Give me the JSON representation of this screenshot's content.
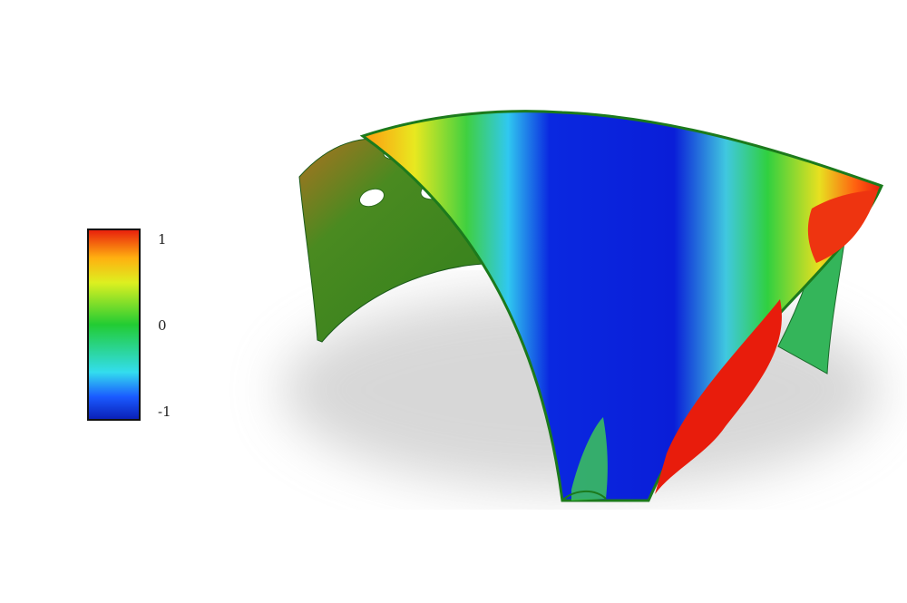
{
  "colorbar": {
    "lim": [
      -1,
      1
    ],
    "ticks": [
      1,
      0,
      -1
    ]
  }
}
